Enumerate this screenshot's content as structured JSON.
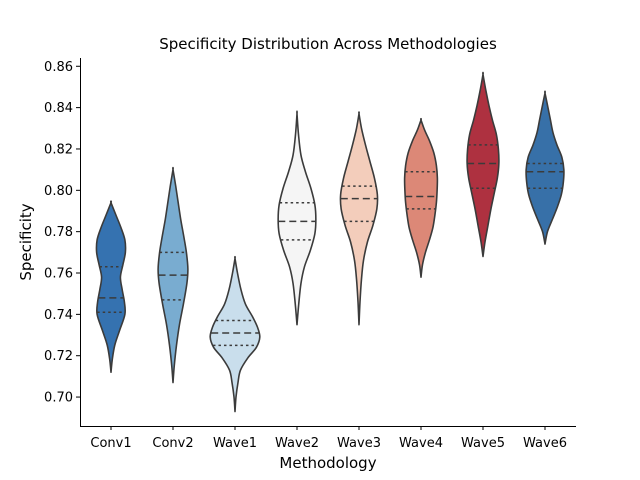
{
  "chart_data": {
    "type": "violin",
    "title": "Specificity Distribution Across Methodologies",
    "xlabel": "Methodology",
    "ylabel": "Specificity",
    "ylim": [
      0.686,
      0.864
    ],
    "yticks": [
      0.7,
      0.72,
      0.74,
      0.76,
      0.78,
      0.8,
      0.82,
      0.84,
      0.86
    ],
    "ytick_labels": [
      "0.70",
      "0.72",
      "0.74",
      "0.76",
      "0.78",
      "0.80",
      "0.82",
      "0.84",
      "0.86"
    ],
    "inner": "quartile",
    "grid": false,
    "categories": [
      "Conv1",
      "Conv2",
      "Wave1",
      "Wave2",
      "Wave3",
      "Wave4",
      "Wave5",
      "Wave6"
    ],
    "colors": [
      "#3572b0",
      "#79acd0",
      "#c9deec",
      "#f5f5f5",
      "#f3cdbb",
      "#dc8877",
      "#ae3140",
      "#3770a8"
    ],
    "violins": [
      {
        "name": "Conv1",
        "min": 0.712,
        "max": 0.794,
        "q1": 0.741,
        "median": 0.748,
        "q3": 0.763,
        "profile": [
          [
            0.712,
            0.0
          ],
          [
            0.718,
            0.05
          ],
          [
            0.725,
            0.15
          ],
          [
            0.732,
            0.34
          ],
          [
            0.74,
            0.56
          ],
          [
            0.746,
            0.54
          ],
          [
            0.752,
            0.45
          ],
          [
            0.758,
            0.38
          ],
          [
            0.764,
            0.48
          ],
          [
            0.77,
            0.58
          ],
          [
            0.776,
            0.56
          ],
          [
            0.782,
            0.4
          ],
          [
            0.788,
            0.2
          ],
          [
            0.794,
            0.0
          ]
        ]
      },
      {
        "name": "Conv2",
        "min": 0.707,
        "max": 0.81,
        "q1": 0.747,
        "median": 0.759,
        "q3": 0.77,
        "profile": [
          [
            0.707,
            0.0
          ],
          [
            0.715,
            0.05
          ],
          [
            0.725,
            0.14
          ],
          [
            0.735,
            0.26
          ],
          [
            0.745,
            0.42
          ],
          [
            0.755,
            0.56
          ],
          [
            0.762,
            0.6
          ],
          [
            0.77,
            0.54
          ],
          [
            0.778,
            0.43
          ],
          [
            0.786,
            0.31
          ],
          [
            0.794,
            0.21
          ],
          [
            0.802,
            0.11
          ],
          [
            0.81,
            0.0
          ]
        ]
      },
      {
        "name": "Wave1",
        "min": 0.693,
        "max": 0.767,
        "q1": 0.725,
        "median": 0.731,
        "q3": 0.737,
        "profile": [
          [
            0.693,
            0.0
          ],
          [
            0.7,
            0.04
          ],
          [
            0.707,
            0.12
          ],
          [
            0.713,
            0.22
          ],
          [
            0.719,
            0.52
          ],
          [
            0.724,
            0.86
          ],
          [
            0.729,
            1.0
          ],
          [
            0.734,
            0.9
          ],
          [
            0.739,
            0.7
          ],
          [
            0.745,
            0.42
          ],
          [
            0.752,
            0.24
          ],
          [
            0.76,
            0.1
          ],
          [
            0.767,
            0.0
          ]
        ]
      },
      {
        "name": "Wave2",
        "min": 0.735,
        "max": 0.837,
        "q1": 0.776,
        "median": 0.785,
        "q3": 0.794,
        "profile": [
          [
            0.735,
            0.0
          ],
          [
            0.745,
            0.07
          ],
          [
            0.755,
            0.16
          ],
          [
            0.763,
            0.3
          ],
          [
            0.771,
            0.54
          ],
          [
            0.779,
            0.72
          ],
          [
            0.786,
            0.76
          ],
          [
            0.793,
            0.72
          ],
          [
            0.801,
            0.56
          ],
          [
            0.809,
            0.34
          ],
          [
            0.817,
            0.16
          ],
          [
            0.827,
            0.06
          ],
          [
            0.837,
            0.0
          ]
        ]
      },
      {
        "name": "Wave3",
        "min": 0.735,
        "max": 0.837,
        "q1": 0.785,
        "median": 0.796,
        "q3": 0.802,
        "profile": [
          [
            0.735,
            0.0
          ],
          [
            0.746,
            0.04
          ],
          [
            0.757,
            0.1
          ],
          [
            0.766,
            0.18
          ],
          [
            0.775,
            0.34
          ],
          [
            0.783,
            0.56
          ],
          [
            0.791,
            0.72
          ],
          [
            0.798,
            0.74
          ],
          [
            0.806,
            0.62
          ],
          [
            0.814,
            0.44
          ],
          [
            0.822,
            0.26
          ],
          [
            0.83,
            0.1
          ],
          [
            0.837,
            0.0
          ]
        ]
      },
      {
        "name": "Wave4",
        "min": 0.758,
        "max": 0.834,
        "q1": 0.791,
        "median": 0.797,
        "q3": 0.809,
        "profile": [
          [
            0.758,
            0.0
          ],
          [
            0.764,
            0.06
          ],
          [
            0.77,
            0.18
          ],
          [
            0.776,
            0.34
          ],
          [
            0.782,
            0.48
          ],
          [
            0.788,
            0.56
          ],
          [
            0.794,
            0.62
          ],
          [
            0.8,
            0.65
          ],
          [
            0.806,
            0.66
          ],
          [
            0.812,
            0.62
          ],
          [
            0.818,
            0.52
          ],
          [
            0.824,
            0.34
          ],
          [
            0.829,
            0.15
          ],
          [
            0.834,
            0.0
          ]
        ]
      },
      {
        "name": "Wave5",
        "min": 0.768,
        "max": 0.856,
        "q1": 0.801,
        "median": 0.813,
        "q3": 0.822,
        "profile": [
          [
            0.768,
            0.0
          ],
          [
            0.775,
            0.08
          ],
          [
            0.783,
            0.2
          ],
          [
            0.791,
            0.32
          ],
          [
            0.799,
            0.46
          ],
          [
            0.806,
            0.58
          ],
          [
            0.813,
            0.64
          ],
          [
            0.82,
            0.62
          ],
          [
            0.827,
            0.54
          ],
          [
            0.834,
            0.38
          ],
          [
            0.841,
            0.24
          ],
          [
            0.848,
            0.12
          ],
          [
            0.856,
            0.0
          ]
        ]
      },
      {
        "name": "Wave6",
        "min": 0.774,
        "max": 0.847,
        "q1": 0.801,
        "median": 0.809,
        "q3": 0.813,
        "profile": [
          [
            0.774,
            0.0
          ],
          [
            0.78,
            0.1
          ],
          [
            0.786,
            0.3
          ],
          [
            0.792,
            0.5
          ],
          [
            0.798,
            0.66
          ],
          [
            0.804,
            0.74
          ],
          [
            0.81,
            0.76
          ],
          [
            0.816,
            0.68
          ],
          [
            0.822,
            0.48
          ],
          [
            0.828,
            0.32
          ],
          [
            0.834,
            0.22
          ],
          [
            0.84,
            0.12
          ],
          [
            0.847,
            0.0
          ]
        ]
      }
    ]
  }
}
